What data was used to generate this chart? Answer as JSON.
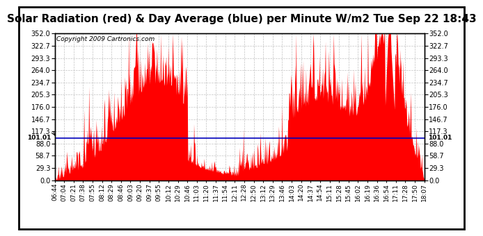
{
  "title": "Solar Radiation (red) & Day Average (blue) per Minute W/m2 Tue Sep 22 18:43",
  "copyright_text": "Copyright 2009 Cartronics.com",
  "y_min": 0.0,
  "y_max": 352.0,
  "y_ticks": [
    0.0,
    29.3,
    58.7,
    88.0,
    117.3,
    146.7,
    176.0,
    205.3,
    234.7,
    264.0,
    293.3,
    322.7,
    352.0
  ],
  "day_average": 101.01,
  "day_average_label": "101.01",
  "bar_color": "#FF0000",
  "avg_line_color": "#0000BB",
  "background_color": "#FFFFFF",
  "grid_color": "#BBBBBB",
  "title_fontsize": 11,
  "copyright_fontsize": 6.5,
  "tick_fontsize": 7,
  "x_tick_labels": [
    "06:44",
    "07:04",
    "07:21",
    "07:38",
    "07:55",
    "08:12",
    "08:29",
    "08:46",
    "09:03",
    "09:20",
    "09:37",
    "09:55",
    "10:12",
    "10:29",
    "10:46",
    "11:03",
    "11:20",
    "11:37",
    "11:54",
    "12:11",
    "12:28",
    "12:50",
    "13:12",
    "13:29",
    "13:46",
    "14:03",
    "14:20",
    "14:37",
    "14:54",
    "15:11",
    "15:28",
    "15:45",
    "16:02",
    "16:19",
    "16:36",
    "16:54",
    "17:11",
    "17:28",
    "17:50",
    "18:07"
  ]
}
